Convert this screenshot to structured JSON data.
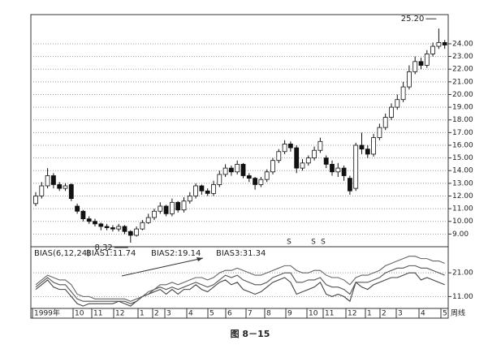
{
  "chart_data": [
    {
      "type": "candlestick",
      "series": [
        {
          "open": [
            11.4,
            12.0,
            12.8,
            13.6,
            12.9,
            12.6,
            12.9,
            11.2,
            10.8,
            10.2,
            10.0,
            9.8,
            9.6,
            9.5,
            9.4,
            9.6,
            9.2,
            8.9,
            9.4,
            9.9,
            10.3,
            10.8,
            11.2,
            10.6,
            11.5,
            10.9,
            11.6,
            12.0,
            12.8,
            12.4,
            12.2,
            12.9,
            13.7,
            14.2,
            13.9,
            14.5,
            13.6,
            13.4,
            12.9,
            13.3,
            13.9,
            14.8,
            15.5,
            16.1,
            15.8,
            14.2,
            14.6,
            15.0,
            15.6,
            15.0,
            14.5,
            13.9,
            14.2,
            13.4,
            12.6,
            16.0,
            15.7,
            15.3,
            16.6,
            17.4,
            18.2,
            19.0,
            19.6,
            20.6,
            21.8,
            22.6,
            22.3,
            23.2,
            23.8,
            24.1
          ],
          "high": [
            12.3,
            13.1,
            14.2,
            13.8,
            13.1,
            13.0,
            13.0,
            11.4,
            10.9,
            10.4,
            10.2,
            9.9,
            9.8,
            9.7,
            9.8,
            9.7,
            9.3,
            9.6,
            10.1,
            10.6,
            11.0,
            11.5,
            11.3,
            11.8,
            11.6,
            11.9,
            12.3,
            13.0,
            12.9,
            12.6,
            13.2,
            14.0,
            14.5,
            14.4,
            14.8,
            14.6,
            13.8,
            13.5,
            13.5,
            14.1,
            15.0,
            15.7,
            16.4,
            16.3,
            16.0,
            14.9,
            15.2,
            15.9,
            16.6,
            15.2,
            14.8,
            14.6,
            14.4,
            13.6,
            16.2,
            17.0,
            16.0,
            16.9,
            17.7,
            18.5,
            19.3,
            20.0,
            21.0,
            22.3,
            23.0,
            22.9,
            23.5,
            24.1,
            25.2,
            24.3
          ],
          "low": [
            11.2,
            11.8,
            12.6,
            12.6,
            12.4,
            12.4,
            11.6,
            10.6,
            10.0,
            9.8,
            9.6,
            9.3,
            9.3,
            9.2,
            9.2,
            9.0,
            8.32,
            8.8,
            9.3,
            9.8,
            10.1,
            10.6,
            10.4,
            10.4,
            10.7,
            10.7,
            11.4,
            11.8,
            12.1,
            12.0,
            12.0,
            12.7,
            13.5,
            13.6,
            13.7,
            13.4,
            13.1,
            12.5,
            12.7,
            13.1,
            13.7,
            14.6,
            15.3,
            15.5,
            13.8,
            14.0,
            14.4,
            14.8,
            15.4,
            14.2,
            13.6,
            13.5,
            13.2,
            12.1,
            12.4,
            15.3,
            15.0,
            15.1,
            16.4,
            17.2,
            18.0,
            18.8,
            19.4,
            20.4,
            21.6,
            22.0,
            22.1,
            23.0,
            23.6,
            23.6
          ],
          "close": [
            12.0,
            12.8,
            13.6,
            12.9,
            12.6,
            12.8,
            11.8,
            10.8,
            10.2,
            10.0,
            9.8,
            9.6,
            9.5,
            9.4,
            9.6,
            9.2,
            8.9,
            9.4,
            9.9,
            10.3,
            10.8,
            11.2,
            10.6,
            11.5,
            10.9,
            11.6,
            12.0,
            12.8,
            12.4,
            12.2,
            12.9,
            13.7,
            14.2,
            13.9,
            14.5,
            13.6,
            13.4,
            12.9,
            13.3,
            13.9,
            14.8,
            15.5,
            16.1,
            15.8,
            14.2,
            14.6,
            15.0,
            15.6,
            16.3,
            14.5,
            13.9,
            14.2,
            13.6,
            12.4,
            16.0,
            15.7,
            15.3,
            16.6,
            17.4,
            18.2,
            19.0,
            19.6,
            20.6,
            21.8,
            22.6,
            22.3,
            23.2,
            23.8,
            24.1,
            23.9
          ]
        }
      ],
      "ylim": [
        8,
        26.3
      ],
      "yticks": [
        {
          "value": 9,
          "label": "9.00"
        },
        {
          "value": 10,
          "label": "10.00"
        },
        {
          "value": 11,
          "label": "11.00"
        },
        {
          "value": 12,
          "label": "12.00"
        },
        {
          "value": 13,
          "label": "13.00"
        },
        {
          "value": 14,
          "label": "14.00"
        },
        {
          "value": 15,
          "label": "15.00"
        },
        {
          "value": 16,
          "label": "16.00"
        },
        {
          "value": 17,
          "label": "17.00"
        },
        {
          "value": 18,
          "label": "18.00"
        },
        {
          "value": 19,
          "label": "19.00"
        },
        {
          "value": 20,
          "label": "20.00"
        },
        {
          "value": 21,
          "label": "21.00"
        },
        {
          "value": 22,
          "label": "22.00"
        },
        {
          "value": 23,
          "label": "23.00"
        },
        {
          "value": 24,
          "label": "24.00"
        }
      ],
      "grid": true,
      "annotations": [
        {
          "value": 25.2,
          "label": "25.20"
        },
        {
          "value": 8.32,
          "label": "8.32"
        }
      ],
      "event_labels": [
        "S",
        "S",
        "S"
      ]
    },
    {
      "type": "line",
      "title": "BIAS(6,12,24)",
      "series": [
        {
          "name": "BIAS1:11.74",
          "color": "#444",
          "values": [
            14,
            16,
            18,
            15,
            14,
            14,
            11,
            8,
            7,
            8,
            8,
            8,
            8,
            8,
            9,
            8,
            7,
            9,
            11,
            12,
            13,
            14,
            12,
            14,
            12,
            14,
            14,
            16,
            14,
            13,
            15,
            17,
            18,
            16,
            17,
            14,
            13,
            12,
            13,
            15,
            17,
            18,
            19,
            17,
            12,
            13,
            14,
            15,
            17,
            12,
            11,
            12,
            11,
            9,
            17,
            15,
            14,
            16,
            17,
            18,
            19,
            19,
            20,
            21,
            21,
            18,
            19,
            18,
            17,
            16
          ]
        },
        {
          "name": "BIAS2:19.14",
          "color": "#555",
          "values": [
            15,
            17,
            19,
            17,
            16,
            16,
            13,
            10,
            9,
            9,
            9,
            9,
            9,
            9,
            9,
            9,
            8,
            9,
            11,
            12,
            14,
            15,
            14,
            15,
            14,
            15,
            16,
            17,
            16,
            15,
            16,
            18,
            20,
            19,
            20,
            18,
            17,
            16,
            16,
            17,
            19,
            20,
            21,
            21,
            17,
            17,
            18,
            18,
            19,
            16,
            15,
            15,
            14,
            12,
            17,
            17,
            17,
            18,
            19,
            21,
            22,
            23,
            23,
            24,
            24,
            23,
            23,
            22,
            21,
            20
          ]
        },
        {
          "name": "BIAS3:31.34",
          "color": "#666",
          "values": [
            16,
            18,
            20,
            19,
            18,
            18,
            16,
            12,
            11,
            11,
            10,
            10,
            10,
            10,
            10,
            10,
            9,
            10,
            11,
            13,
            14,
            16,
            16,
            17,
            16,
            17,
            18,
            19,
            19,
            18,
            19,
            21,
            22,
            22,
            23,
            22,
            21,
            20,
            20,
            21,
            22,
            23,
            24,
            24,
            22,
            21,
            21,
            22,
            22,
            20,
            19,
            19,
            18,
            16,
            19,
            20,
            20,
            21,
            22,
            24,
            25,
            26,
            27,
            28,
            28,
            27,
            27,
            26,
            26,
            25
          ]
        }
      ],
      "ylim": [
        6,
        32
      ],
      "yticks": [
        {
          "value": 11,
          "label": "11.00"
        },
        {
          "value": 21,
          "label": "21.00"
        }
      ],
      "grid": true,
      "xtick_labels": [
        "1999年",
        "10",
        "11",
        "12",
        "1",
        "2",
        "3",
        "4",
        "5",
        "6",
        "7",
        "8",
        "9",
        "10",
        "11",
        "12",
        "1",
        "2",
        "3",
        "4",
        "5"
      ],
      "period_label": "周线"
    }
  ],
  "caption": "图 8－15"
}
